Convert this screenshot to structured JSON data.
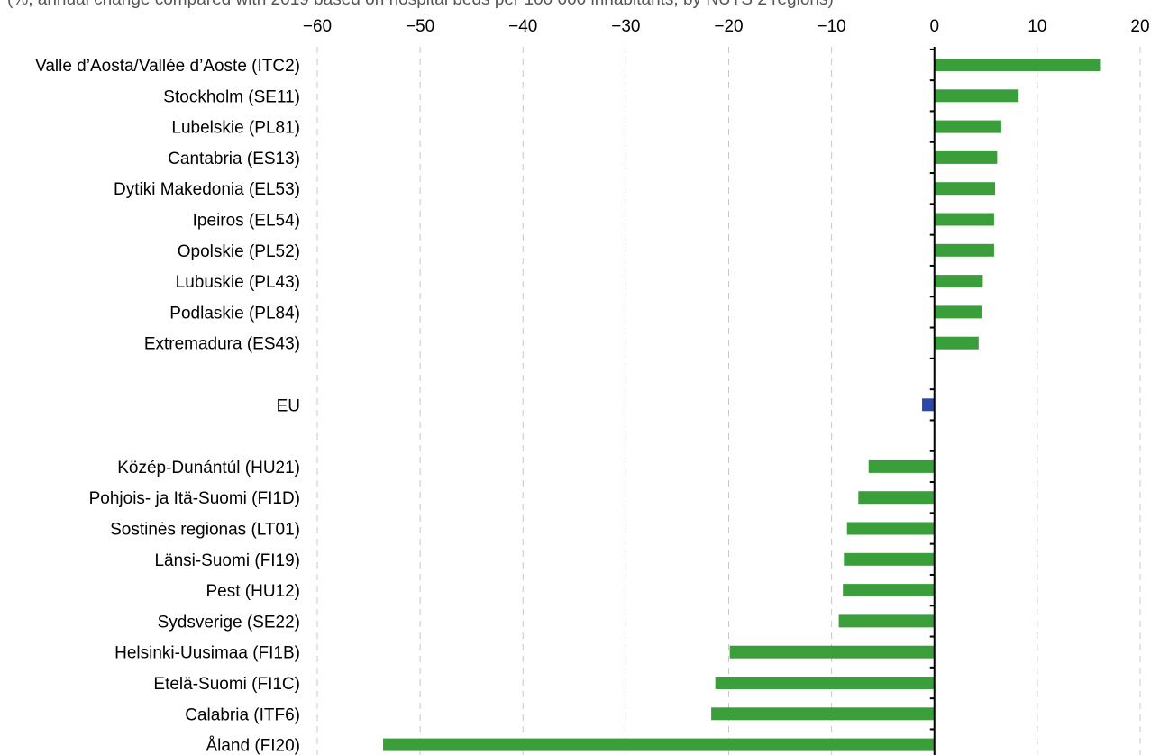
{
  "chart_data": {
    "type": "bar",
    "orientation": "horizontal",
    "subtitle": "(%, annual change compared with 2019 based on hospital beds per 100 000 inhabitants, by NUTS 2 regions)",
    "xlim": [
      -60,
      20
    ],
    "xticks": [
      -60,
      -50,
      -40,
      -30,
      -20,
      -10,
      0,
      10,
      20
    ],
    "xtick_labels": [
      "−60",
      "−50",
      "−40",
      "−30",
      "−20",
      "−10",
      "0",
      "10",
      "20"
    ],
    "grid": "vertical dashed",
    "categories": [
      "Valle d’Aosta/Vallée d’Aoste (ITC2)",
      "Stockholm (SE11)",
      "Lubelskie (PL81)",
      "Cantabria (ES13)",
      "Dytiki Makedonia (EL53)",
      "Ipeiros (EL54)",
      "Opolskie (PL52)",
      "Lubuskie (PL43)",
      "Podlaskie (PL84)",
      "Extremadura (ES43)",
      "",
      "EU",
      "",
      "Közép-Dunántúl (HU21)",
      "Pohjois- ja Itä-Suomi (FI1D)",
      "Sostinės regionas (LT01)",
      "Länsi-Suomi (FI19)",
      "Pest (HU12)",
      "Sydsverige (SE22)",
      "Helsinki-Uusimaa (FI1B)",
      "Etelä-Suomi (FI1C)",
      "Calabria (ITF6)",
      "Åland (FI20)"
    ],
    "values": [
      16.1,
      8.1,
      6.5,
      6.1,
      5.9,
      5.8,
      5.8,
      4.7,
      4.6,
      4.3,
      null,
      -1.2,
      null,
      -6.4,
      -7.4,
      -8.5,
      -8.8,
      -8.9,
      -9.3,
      -19.9,
      -21.3,
      -21.7,
      -53.6
    ],
    "colors": {
      "region": "#3a9e3a",
      "eu": "#2b47a8",
      "axis": "#000000",
      "grid": "#c8c8c8"
    }
  }
}
